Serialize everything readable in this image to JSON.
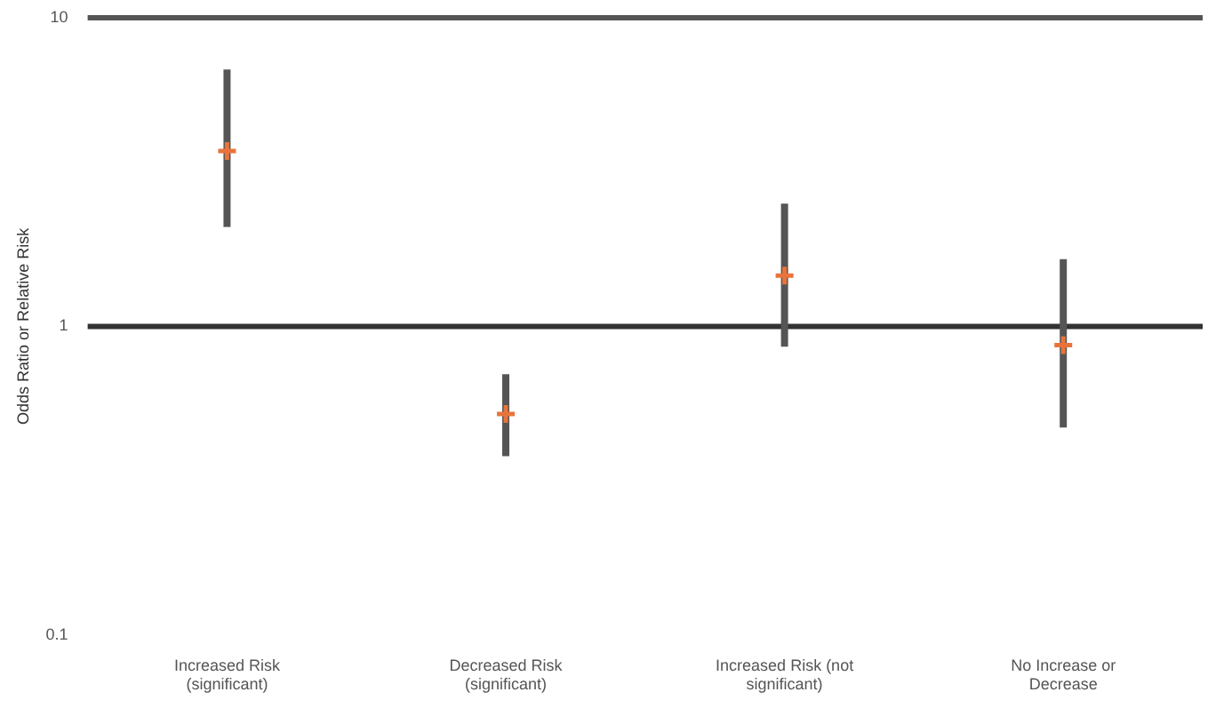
{
  "chart_data": {
    "type": "scatter",
    "ylabel": "Odds Ratio or Relative Risk",
    "categories": [
      "Increased Risk (significant)",
      "Decreased Risk (significant)",
      "Increased Risk (not significant)",
      "No Increase or Decrease"
    ],
    "values": [
      3.7,
      0.52,
      1.46,
      0.87
    ],
    "errors": [
      [
        2.1,
        6.8
      ],
      [
        0.38,
        0.7
      ],
      [
        0.86,
        2.5
      ],
      [
        0.47,
        1.65
      ]
    ],
    "color": "#e8743b",
    "marker": "cross",
    "log": "y",
    "ylim": [
      0.1,
      10
    ],
    "yticks": [
      0.1,
      1,
      10
    ],
    "grid": false,
    "legend": false,
    "ref_lines": [
      {
        "axis": "y",
        "value": 1,
        "color": "#333333"
      },
      {
        "axis": "y",
        "value": 10,
        "color": "#555555"
      }
    ]
  }
}
